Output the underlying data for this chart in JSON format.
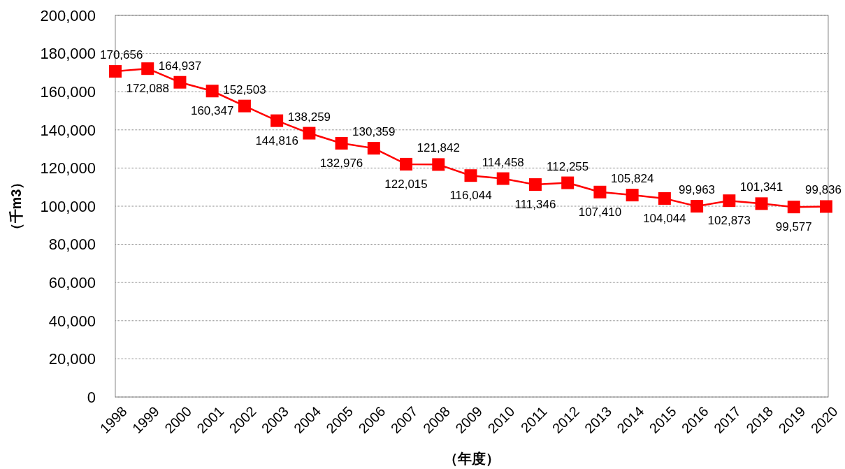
{
  "chart_data": {
    "type": "line",
    "xlabel": "（年度）",
    "ylabel": "（千m3）",
    "categories": [
      "1998",
      "1999",
      "2000",
      "2001",
      "2002",
      "2003",
      "2004",
      "2005",
      "2006",
      "2007",
      "2008",
      "2009",
      "2010",
      "2011",
      "2012",
      "2013",
      "2014",
      "2015",
      "2016",
      "2017",
      "2018",
      "2019",
      "2020"
    ],
    "series": [
      {
        "color": "#ff0000",
        "values": [
          170656,
          172088,
          164937,
          160347,
          152503,
          144816,
          138259,
          132976,
          130359,
          122015,
          121842,
          116044,
          114458,
          111346,
          112255,
          107410,
          105824,
          104044,
          99963,
          102873,
          101341,
          99577,
          99836
        ]
      }
    ],
    "ylim": [
      0,
      200000
    ],
    "yticks": [
      0,
      {
        "value": 20000,
        "label": "20,000"
      },
      {
        "value": 40000,
        "label": "40,000"
      },
      {
        "value": 60000,
        "label": "60,000"
      },
      {
        "value": 80000,
        "label": "80,000"
      },
      {
        "value": 100000,
        "label": "100,000"
      },
      {
        "value": 120000,
        "label": "120,000"
      },
      {
        "value": 140000,
        "label": "140,000"
      },
      {
        "value": 160000,
        "label": "160,000"
      },
      {
        "value": 180000,
        "label": "180,000"
      },
      {
        "value": 200000,
        "label": "200,000"
      }
    ],
    "value_labels": [
      "170,656",
      "172,088",
      "164,937",
      "160,347",
      "152,503",
      "144,816",
      "138,259",
      "132,976",
      "130,359",
      "122,015",
      "121,842",
      "116,044",
      "114,458",
      "111,346",
      "112,255",
      "107,410",
      "105,824",
      "104,044",
      "99,963",
      "102,873",
      "101,341",
      "99,577",
      "99,836"
    ],
    "grid": "y",
    "marker": "square",
    "line_style": "solid"
  }
}
